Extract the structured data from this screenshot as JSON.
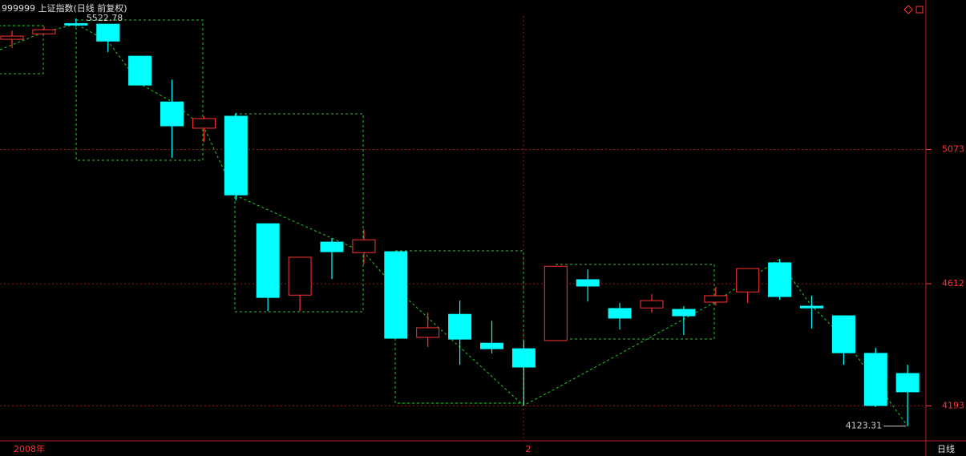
{
  "chart_data": {
    "type": "candlestick",
    "title": "999999 上证指数(日线 前复权)",
    "period_label": "日线",
    "categories": [
      "2008年",
      null,
      null,
      null,
      null,
      null,
      null,
      null,
      null,
      null,
      null,
      null,
      null,
      null,
      null,
      null,
      "2",
      null,
      null,
      null,
      null,
      null,
      null,
      null,
      null,
      null,
      null,
      null,
      null
    ],
    "open": [
      5451,
      5470,
      5505,
      5503,
      5393,
      5236,
      5146,
      5187,
      4818,
      4573,
      4755,
      4719,
      4722,
      4428,
      4507,
      4408,
      4389,
      4417,
      4626,
      4527,
      4529,
      4524,
      4549,
      4584,
      4684,
      4535,
      4502,
      4373,
      4304
    ],
    "high": [
      5481,
      5495,
      5522.78,
      5503,
      5393,
      5313,
      5187,
      5198,
      4818,
      4703,
      4769,
      4799,
      4722,
      4513,
      4554,
      4485,
      4417,
      4672,
      4661,
      4546,
      4576,
      4535,
      4601,
      4664,
      4697,
      4571,
      4502,
      4392,
      4334
    ],
    "low": [
      5421,
      5467,
      5495,
      5407,
      5294,
      5044,
      5099,
      4898,
      4518,
      4518,
      4628,
      4678,
      4425,
      4395,
      4334,
      4373,
      4194,
      4417,
      4551,
      4455,
      4513,
      4436,
      4538,
      4546,
      4557,
      4458,
      4334,
      4189,
      4123.31
    ],
    "close": [
      5462,
      5484,
      5500,
      5445,
      5294,
      5154,
      5179,
      4917,
      4565,
      4703,
      4722,
      4763,
      4425,
      4461,
      4422,
      4389,
      4326,
      4672,
      4604,
      4494,
      4554,
      4502,
      4571,
      4664,
      4568,
      4529,
      4375,
      4194,
      4241
    ],
    "up_color": "#ff3232",
    "down_color": "#00ffff",
    "grid_color": "#a01818",
    "ylim": [
      4073,
      5586
    ],
    "yticks": [
      4193,
      4612,
      5073
    ],
    "grid": true
  }
}
